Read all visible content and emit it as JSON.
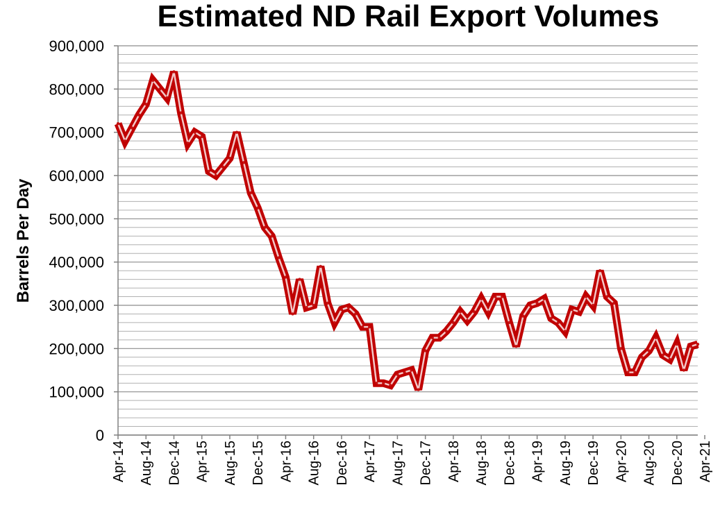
{
  "chart_data": {
    "type": "line",
    "title": "Estimated ND Rail Export Volumes",
    "xlabel": "",
    "ylabel": "Barrels Per Day",
    "ylim": [
      0,
      900000
    ],
    "grid": true,
    "line_color": "#c00000",
    "ytick_labels": [
      "0",
      "100,000",
      "200,000",
      "300,000",
      "400,000",
      "500,000",
      "600,000",
      "700,000",
      "800,000",
      "900,000"
    ],
    "xtick_labels": [
      "Apr-14",
      "Aug-14",
      "Dec-14",
      "Apr-15",
      "Aug-15",
      "Dec-15",
      "Apr-16",
      "Aug-16",
      "Dec-16",
      "Apr-17",
      "Aug-17",
      "Dec-17",
      "Apr-18",
      "Aug-18",
      "Dec-18",
      "Apr-19",
      "Aug-19",
      "Dec-19",
      "Apr-20",
      "Aug-20",
      "Dec-20",
      "Apr-21"
    ],
    "series": [
      {
        "name": "Estimated ND Rail Export Volumes",
        "start": "Apr-14",
        "values": [
          720000,
          680000,
          710000,
          740000,
          765000,
          820000,
          800000,
          780000,
          840000,
          745000,
          675000,
          700000,
          690000,
          610000,
          600000,
          620000,
          640000,
          700000,
          630000,
          560000,
          525000,
          480000,
          460000,
          410000,
          365000,
          280000,
          360000,
          295000,
          300000,
          390000,
          305000,
          260000,
          290000,
          295000,
          280000,
          250000,
          250000,
          120000,
          120000,
          115000,
          140000,
          145000,
          150000,
          105000,
          195000,
          225000,
          225000,
          240000,
          260000,
          285000,
          265000,
          285000,
          315000,
          285000,
          320000,
          320000,
          260000,
          205000,
          275000,
          300000,
          305000,
          315000,
          270000,
          260000,
          240000,
          290000,
          285000,
          320000,
          300000,
          380000,
          320000,
          305000,
          200000,
          145000,
          145000,
          180000,
          195000,
          225000,
          185000,
          175000,
          210000,
          150000,
          205000,
          210000
        ]
      }
    ]
  }
}
